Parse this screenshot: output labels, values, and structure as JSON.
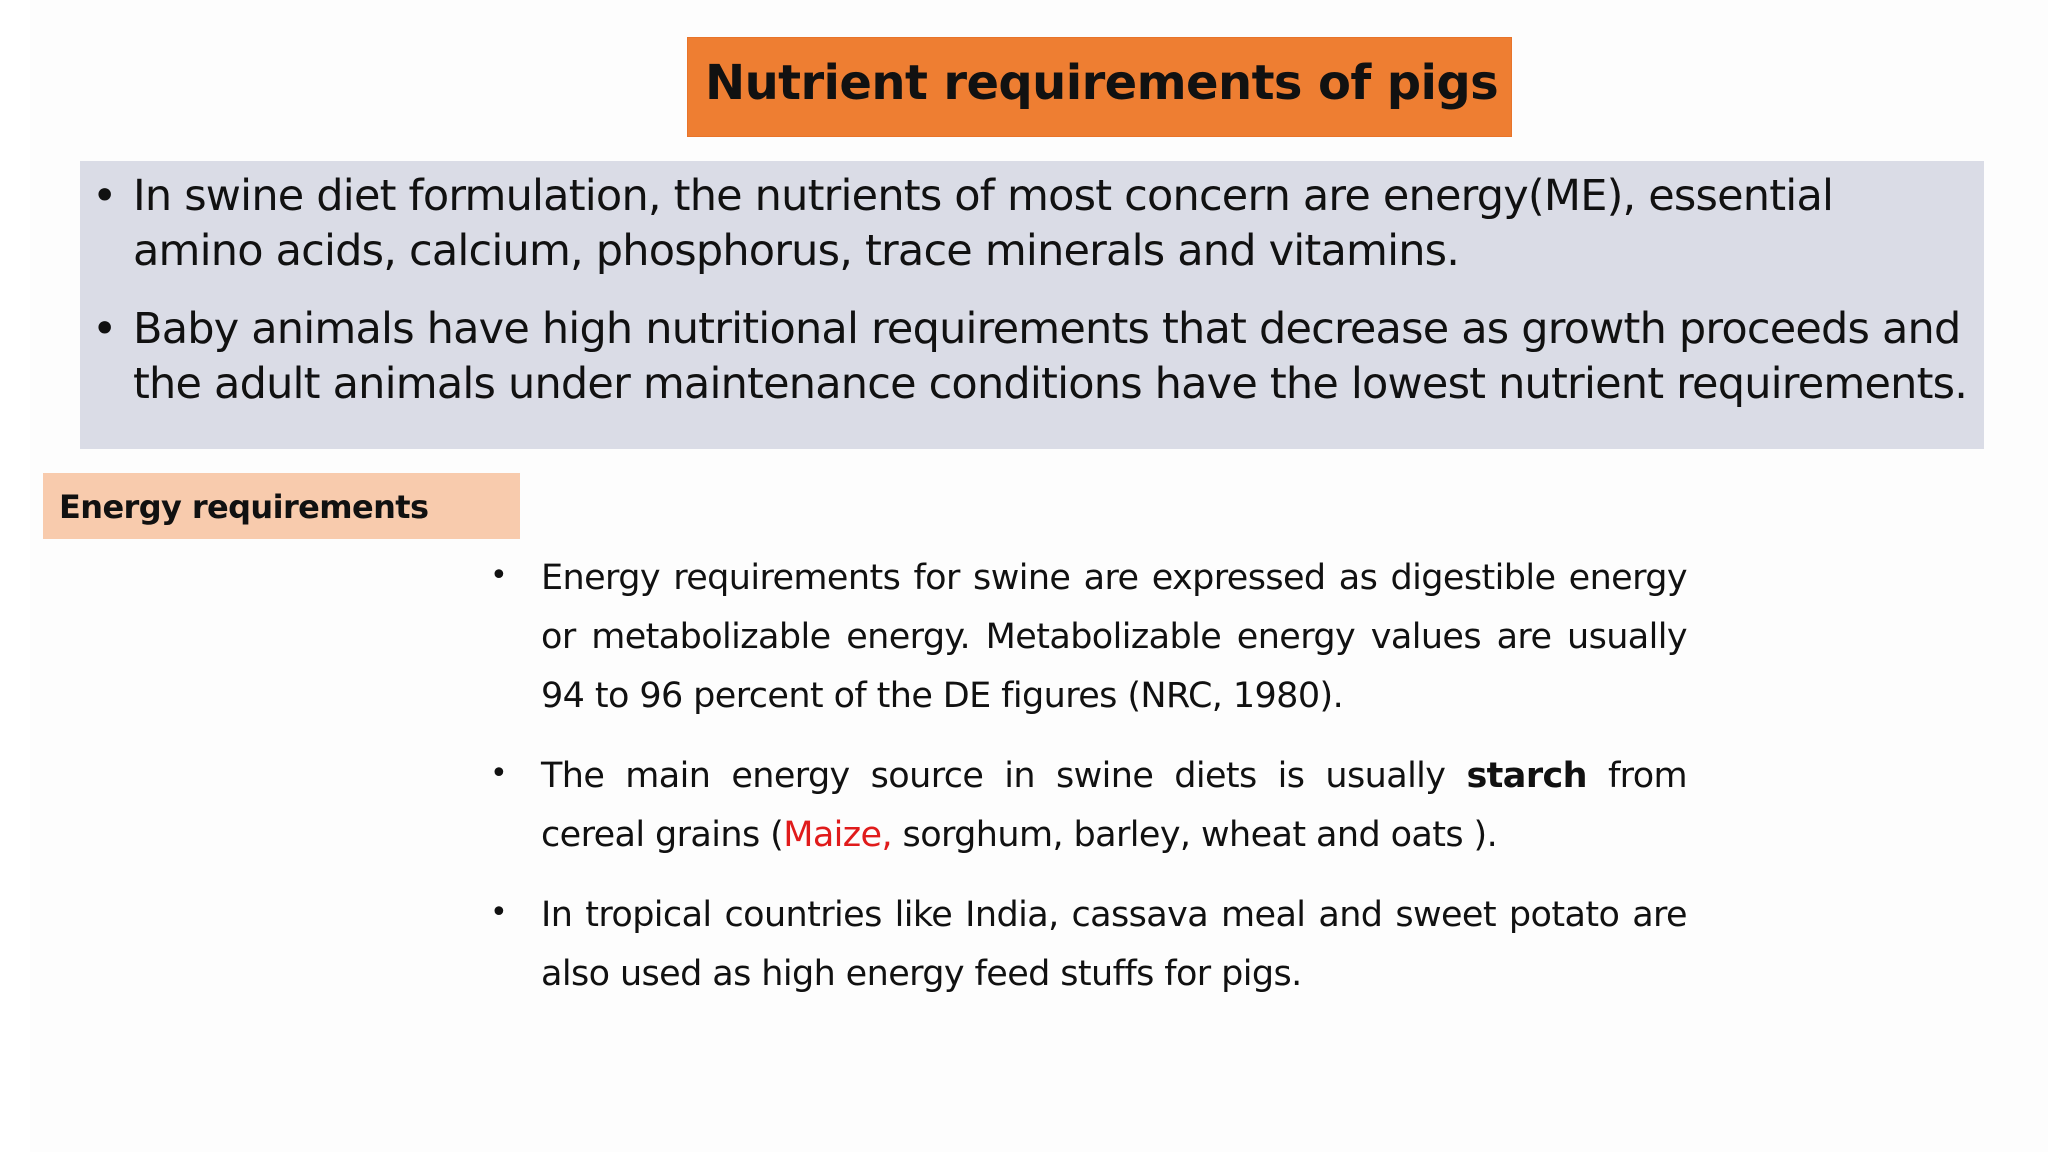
{
  "title": "Nutrient requirements of pigs",
  "intro": {
    "bullet_symbol": "•",
    "items": [
      {
        "lines": [
          "In swine diet formulation, the nutrients of most concern are energy(ME), essential",
          "amino acids, calcium, phosphorus, trace minerals and vitamins."
        ]
      },
      {
        "lines": [
          "Baby animals have high nutritional requirements that decrease as growth proceeds and",
          "the adult animals under maintenance conditions have the lowest nutrient requirements."
        ]
      }
    ]
  },
  "energy_section": {
    "heading": "Energy requirements",
    "bullet_symbol": "•",
    "item1": {
      "lines": [
        "Energy requirements for swine are expressed as digestible energy",
        "or metabolizable energy. Metabolizable energy values are usually",
        "94 to 96 percent of the DE figures (NRC, 1980)."
      ]
    },
    "item2": {
      "line1_before": "The main energy source in swine diets is usually",
      "line1_bold": "starch",
      "line1_after": "from",
      "line2_before": "cereal grains (",
      "line2_highlight": "Maize,",
      "line2_after": " sorghum, barley, wheat and oats )."
    },
    "item3": {
      "lines": [
        "In tropical countries like India, cassava meal and sweet potato are",
        "also used as high energy feed stuffs for pigs."
      ]
    },
    "colors": {
      "highlight": "#e01b1b"
    }
  },
  "colors": {
    "title_background": "#ee7e32",
    "intro_background": "#dadce6",
    "heading_background": "#f8cbad"
  }
}
